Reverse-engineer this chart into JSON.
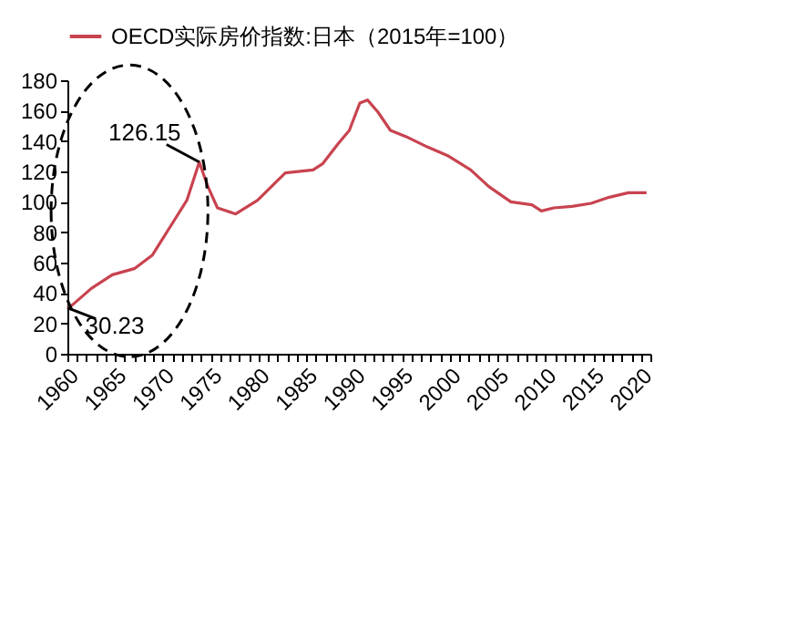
{
  "chart_data": {
    "type": "line",
    "xlim": [
      1960,
      2021
    ],
    "ylim": [
      0,
      180
    ],
    "yticks": [
      0,
      20,
      40,
      60,
      80,
      100,
      120,
      140,
      160,
      180
    ],
    "xticks": [
      1960,
      {
        "value": 1961,
        "label": null
      },
      {
        "value": 1962,
        "label": null
      },
      {
        "value": 1963,
        "label": null
      },
      {
        "value": 1964,
        "label": null
      },
      1965,
      {
        "value": 1966,
        "label": null
      },
      {
        "value": 1967,
        "label": null
      },
      {
        "value": 1968,
        "label": null
      },
      {
        "value": 1969,
        "label": null
      },
      1970,
      {
        "value": 1971,
        "label": null
      },
      {
        "value": 1972,
        "label": null
      },
      {
        "value": 1973,
        "label": null
      },
      {
        "value": 1974,
        "label": null
      },
      1975,
      {
        "value": 1976,
        "label": null
      },
      {
        "value": 1977,
        "label": null
      },
      {
        "value": 1978,
        "label": null
      },
      {
        "value": 1979,
        "label": null
      },
      1980,
      {
        "value": 1981,
        "label": null
      },
      {
        "value": 1982,
        "label": null
      },
      {
        "value": 1983,
        "label": null
      },
      {
        "value": 1984,
        "label": null
      },
      1985,
      {
        "value": 1986,
        "label": null
      },
      {
        "value": 1987,
        "label": null
      },
      {
        "value": 1988,
        "label": null
      },
      {
        "value": 1989,
        "label": null
      },
      1990,
      {
        "value": 1991,
        "label": null
      },
      {
        "value": 1992,
        "label": null
      },
      {
        "value": 1993,
        "label": null
      },
      {
        "value": 1994,
        "label": null
      },
      1995,
      {
        "value": 1996,
        "label": null
      },
      {
        "value": 1997,
        "label": null
      },
      {
        "value": 1998,
        "label": null
      },
      {
        "value": 1999,
        "label": null
      },
      2000,
      {
        "value": 2001,
        "label": null
      },
      {
        "value": 2002,
        "label": null
      },
      {
        "value": 2003,
        "label": null
      },
      {
        "value": 2004,
        "label": null
      },
      2005,
      {
        "value": 2006,
        "label": null
      },
      {
        "value": 2007,
        "label": null
      },
      {
        "value": 2008,
        "label": null
      },
      {
        "value": 2009,
        "label": null
      },
      2010,
      {
        "value": 2011,
        "label": null
      },
      {
        "value": 2012,
        "label": null
      },
      {
        "value": 2013,
        "label": null
      },
      {
        "value": 2014,
        "label": null
      },
      2015,
      {
        "value": 2016,
        "label": null
      },
      {
        "value": 2017,
        "label": null
      },
      {
        "value": 2018,
        "label": null
      },
      {
        "value": 2019,
        "label": null
      },
      2020,
      {
        "value": 2021,
        "label": null
      }
    ],
    "grid": false,
    "legend": "top",
    "marker": "none",
    "line_style": "solid",
    "series": [
      {
        "name": "OECD实际房价指数:日本（2015年=100）",
        "color": "#c8434f",
        "x": [
          1960,
          1960.5,
          1962.5,
          1964.7,
          1967,
          1968.9,
          1970.5,
          1972.5,
          1973.8,
          1974.7,
          1975.7,
          1977.6,
          1979.9,
          1982.8,
          1985.7,
          1986.7,
          1988.3,
          1989.5,
          1990.6,
          1991.4,
          1992.5,
          1993.8,
          1995.4,
          1997.7,
          1999.9,
          2002.2,
          2004.1,
          2006.4,
          2008.6,
          2009.6,
          2010.9,
          2012.8,
          2014.8,
          2016.7,
          2018.7,
          2020.6
        ],
        "values": [
          30.23,
          32,
          43,
          52,
          56,
          65,
          81,
          101,
          126.15,
          110,
          96,
          92,
          101,
          119,
          121,
          125,
          138,
          147,
          165,
          167,
          159,
          147,
          143,
          136,
          130,
          121,
          110,
          100,
          98,
          94,
          96,
          97,
          99,
          103,
          106,
          106
        ]
      }
    ],
    "annotations": [
      {
        "text": "126.15",
        "x": 1973.8,
        "y": 126.15
      },
      {
        "text": "30.23",
        "x": 1960,
        "y": 30.23
      }
    ]
  }
}
